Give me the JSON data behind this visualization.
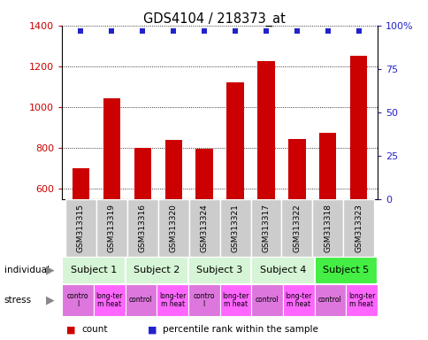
{
  "title": "GDS4104 / 218373_at",
  "samples": [
    "GSM313315",
    "GSM313319",
    "GSM313316",
    "GSM313320",
    "GSM313324",
    "GSM313321",
    "GSM313317",
    "GSM313322",
    "GSM313318",
    "GSM313323"
  ],
  "counts": [
    700,
    1045,
    800,
    840,
    795,
    1120,
    1225,
    845,
    875,
    1250
  ],
  "percentile_ranks": [
    97,
    97,
    97,
    97,
    97,
    97,
    97,
    97,
    97,
    97
  ],
  "bar_color": "#cc0000",
  "dot_color": "#2222cc",
  "ylim_left": [
    550,
    1400
  ],
  "yticks_left": [
    600,
    800,
    1000,
    1200,
    1400
  ],
  "ylim_right": [
    0,
    100
  ],
  "yticks_right": [
    0,
    25,
    50,
    75,
    100
  ],
  "subjects": [
    "Subject 1",
    "Subject 2",
    "Subject 3",
    "Subject 4",
    "Subject 5"
  ],
  "subject_colors": [
    "#d6f5d6",
    "#d6f5d6",
    "#d6f5d6",
    "#d6f5d6",
    "#44ee44"
  ],
  "stress_labels": [
    "contro\nl",
    "long-ter\nm heat",
    "control",
    "long-ter\nm heat",
    "contro\nl",
    "long-ter\nm heat",
    "control",
    "long-ter\nm heat",
    "control",
    "long-ter\nm heat"
  ],
  "stress_colors_ctrl": "#dd77dd",
  "stress_colors_heat": "#ff66ff",
  "sample_bg_color": "#cccccc",
  "ylabel_left_color": "#cc0000",
  "ylabel_right_color": "#2222cc"
}
